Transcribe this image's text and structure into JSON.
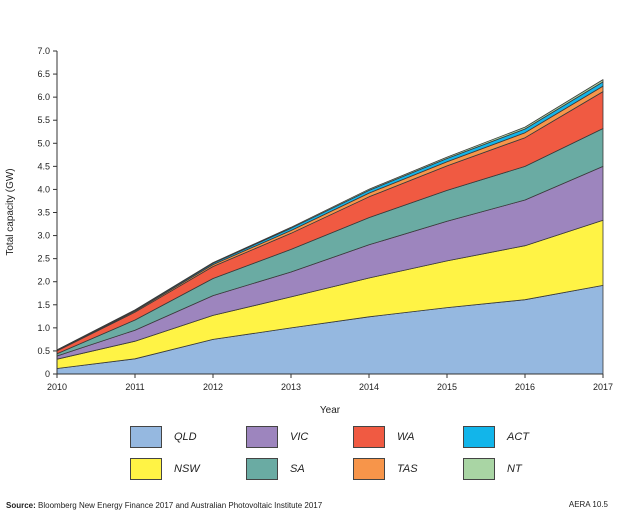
{
  "chart_data": {
    "type": "area",
    "stacked": true,
    "x": [
      2010,
      2011,
      2012,
      2013,
      2014,
      2015,
      2016,
      2017
    ],
    "xlabel": "Year",
    "ylabel": "Total capacity (GW)",
    "ylim": [
      0,
      7
    ],
    "yticks": [
      "0",
      "0.5",
      "1.0",
      "1.5",
      "2.0",
      "2.5",
      "3.0",
      "3.5",
      "4.0",
      "4.5",
      "5.0",
      "5.5",
      "6.0",
      "6.5",
      "7.0"
    ],
    "series": [
      {
        "name": "QLD",
        "color": "#95b8e0",
        "values": [
          0.12,
          0.33,
          0.75,
          1.0,
          1.24,
          1.44,
          1.61,
          1.92
        ]
      },
      {
        "name": "NSW",
        "color": "#fff345",
        "values": [
          0.2,
          0.38,
          0.52,
          0.67,
          0.84,
          1.01,
          1.17,
          1.41
        ]
      },
      {
        "name": "VIC",
        "color": "#9d85be",
        "values": [
          0.07,
          0.24,
          0.43,
          0.54,
          0.72,
          0.86,
          0.99,
          1.17
        ]
      },
      {
        "name": "SA",
        "color": "#6aaba3",
        "values": [
          0.05,
          0.22,
          0.37,
          0.49,
          0.59,
          0.67,
          0.73,
          0.82
        ]
      },
      {
        "name": "WA",
        "color": "#f05a42",
        "values": [
          0.06,
          0.17,
          0.26,
          0.35,
          0.45,
          0.53,
          0.62,
          0.8
        ]
      },
      {
        "name": "TAS",
        "color": "#f7954a",
        "values": [
          0.01,
          0.02,
          0.04,
          0.06,
          0.08,
          0.09,
          0.11,
          0.12
        ]
      },
      {
        "name": "ACT",
        "color": "#12b5ea",
        "values": [
          0.01,
          0.02,
          0.03,
          0.05,
          0.06,
          0.07,
          0.08,
          0.09
        ]
      },
      {
        "name": "NT",
        "color": "#a9d5a4",
        "values": [
          0.005,
          0.01,
          0.015,
          0.02,
          0.025,
          0.03,
          0.04,
          0.05
        ]
      }
    ]
  },
  "legend": [
    {
      "name": "QLD",
      "color": "#95b8e0"
    },
    {
      "name": "VIC",
      "color": "#9d85be"
    },
    {
      "name": "WA",
      "color": "#f05a42"
    },
    {
      "name": "ACT",
      "color": "#12b5ea"
    },
    {
      "name": "NSW",
      "color": "#fff345"
    },
    {
      "name": "SA",
      "color": "#6aaba3"
    },
    {
      "name": "TAS",
      "color": "#f7954a"
    },
    {
      "name": "NT",
      "color": "#a9d5a4"
    }
  ],
  "footer": {
    "source_label": "Source:",
    "source_text": "Bloomberg New Energy Finance 2017 and Australian Photovoltaic Institute 2017",
    "reference": "AERA 10.5"
  }
}
